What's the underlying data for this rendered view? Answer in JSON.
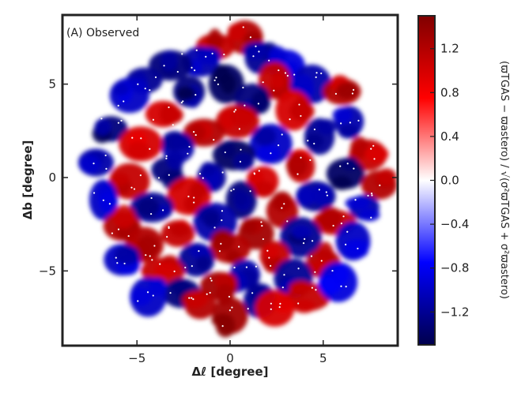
{
  "chart_data": {
    "type": "heatmap",
    "title": "",
    "panel_label": "(A) Observed",
    "xlabel": "Δℓ [degree]",
    "ylabel": "Δb [degree]",
    "xlim": [
      -9,
      9
    ],
    "ylim": [
      -9,
      8.7
    ],
    "xticks": [
      -5,
      0,
      5
    ],
    "yticks": [
      -5,
      0,
      5
    ],
    "x_tick_labels": [
      "−5",
      "0",
      "5"
    ],
    "y_tick_labels": [
      "−5",
      "0",
      "5"
    ],
    "field_radius_deg": 8.5,
    "colorbar": {
      "label": "(ϖTGAS − ϖastero) / √(σ²ϖTGAS + σ²ϖastero)",
      "range": [
        -1.5,
        1.5
      ],
      "ticks": [
        -1.2,
        -0.8,
        -0.4,
        0.0,
        0.4,
        0.8,
        1.2
      ],
      "tick_labels": [
        "−1.2",
        "−0.8",
        "−0.4",
        "0.0",
        "0.4",
        "0.8",
        "1.2"
      ],
      "colormap": "seismic",
      "low_color": "#00004c",
      "mid_color": "#ffffff",
      "high_color": "#800000"
    },
    "blobs": [
      {
        "x": 0.8,
        "y": 7.5,
        "v": 1.2
      },
      {
        "x": -0.8,
        "y": 7.0,
        "v": 1.1
      },
      {
        "x": 1.6,
        "y": 6.4,
        "v": -1.2
      },
      {
        "x": -1.6,
        "y": 6.2,
        "v": -1.1
      },
      {
        "x": 3.0,
        "y": 6.0,
        "v": -0.9
      },
      {
        "x": -3.2,
        "y": 6.0,
        "v": -1.3
      },
      {
        "x": 2.4,
        "y": 5.2,
        "v": 1.1
      },
      {
        "x": -2.2,
        "y": 4.6,
        "v": -1.3
      },
      {
        "x": -0.2,
        "y": 5.0,
        "v": -1.4
      },
      {
        "x": 4.4,
        "y": 5.0,
        "v": -1.1
      },
      {
        "x": -4.6,
        "y": 5.2,
        "v": -1.2
      },
      {
        "x": 6.0,
        "y": 4.6,
        "v": 1.2
      },
      {
        "x": -5.4,
        "y": 4.4,
        "v": -1.0
      },
      {
        "x": 1.2,
        "y": 4.2,
        "v": -1.3
      },
      {
        "x": 3.4,
        "y": 3.6,
        "v": 1.0
      },
      {
        "x": -3.6,
        "y": 3.4,
        "v": 1.0
      },
      {
        "x": 6.4,
        "y": 3.0,
        "v": -1.1
      },
      {
        "x": 0.4,
        "y": 3.0,
        "v": 1.1
      },
      {
        "x": -1.4,
        "y": 2.4,
        "v": 1.2
      },
      {
        "x": -6.4,
        "y": 2.6,
        "v": -1.3
      },
      {
        "x": 4.8,
        "y": 2.2,
        "v": -1.2
      },
      {
        "x": 2.2,
        "y": 1.8,
        "v": -1.0
      },
      {
        "x": -2.8,
        "y": 1.6,
        "v": -1.1
      },
      {
        "x": -4.8,
        "y": 1.8,
        "v": 1.0
      },
      {
        "x": 7.4,
        "y": 1.2,
        "v": 1.1
      },
      {
        "x": 0.2,
        "y": 1.2,
        "v": -1.4
      },
      {
        "x": -7.2,
        "y": 0.8,
        "v": -1.1
      },
      {
        "x": 3.8,
        "y": 0.6,
        "v": 1.1
      },
      {
        "x": -3.4,
        "y": 0.4,
        "v": -1.3
      },
      {
        "x": 6.2,
        "y": 0.2,
        "v": -1.4
      },
      {
        "x": -1.0,
        "y": 0.0,
        "v": -1.2
      },
      {
        "x": 1.8,
        "y": -0.2,
        "v": 1.0
      },
      {
        "x": 8.0,
        "y": -0.4,
        "v": 1.2
      },
      {
        "x": -5.4,
        "y": -0.2,
        "v": 1.1
      },
      {
        "x": 4.6,
        "y": -1.0,
        "v": -1.2
      },
      {
        "x": -2.2,
        "y": -1.0,
        "v": 1.0
      },
      {
        "x": 0.6,
        "y": -1.2,
        "v": -1.3
      },
      {
        "x": -6.8,
        "y": -1.2,
        "v": -1.0
      },
      {
        "x": 7.2,
        "y": -1.6,
        "v": -1.1
      },
      {
        "x": 2.8,
        "y": -1.8,
        "v": 1.2
      },
      {
        "x": -4.2,
        "y": -1.6,
        "v": -1.2
      },
      {
        "x": -0.8,
        "y": -2.4,
        "v": -1.1
      },
      {
        "x": 5.6,
        "y": -2.4,
        "v": 1.1
      },
      {
        "x": -5.8,
        "y": -2.6,
        "v": 1.2
      },
      {
        "x": 1.4,
        "y": -3.0,
        "v": 1.3
      },
      {
        "x": -2.8,
        "y": -3.0,
        "v": 1.1
      },
      {
        "x": 3.8,
        "y": -3.2,
        "v": -1.2
      },
      {
        "x": -4.6,
        "y": -3.6,
        "v": 1.2
      },
      {
        "x": 6.6,
        "y": -3.4,
        "v": -1.0
      },
      {
        "x": 0.0,
        "y": -3.8,
        "v": 1.2
      },
      {
        "x": -1.8,
        "y": -4.4,
        "v": -1.2
      },
      {
        "x": 2.4,
        "y": -4.2,
        "v": 1.1
      },
      {
        "x": 5.0,
        "y": -4.6,
        "v": 1.2
      },
      {
        "x": -3.6,
        "y": -5.0,
        "v": 1.1
      },
      {
        "x": -5.8,
        "y": -4.4,
        "v": -1.0
      },
      {
        "x": 3.4,
        "y": -5.4,
        "v": -1.2
      },
      {
        "x": 0.8,
        "y": -5.2,
        "v": -1.1
      },
      {
        "x": -0.6,
        "y": -5.8,
        "v": 1.3
      },
      {
        "x": -2.6,
        "y": -6.2,
        "v": -1.3
      },
      {
        "x": 4.2,
        "y": -6.4,
        "v": 1.1
      },
      {
        "x": 1.6,
        "y": -6.6,
        "v": -1.2
      },
      {
        "x": -1.6,
        "y": -6.8,
        "v": 1.2
      },
      {
        "x": 0.0,
        "y": -7.4,
        "v": 1.3
      },
      {
        "x": 2.4,
        "y": -7.0,
        "v": 1.0
      },
      {
        "x": -4.4,
        "y": -6.4,
        "v": -1.0
      },
      {
        "x": 5.8,
        "y": -5.6,
        "v": -0.9
      }
    ]
  }
}
